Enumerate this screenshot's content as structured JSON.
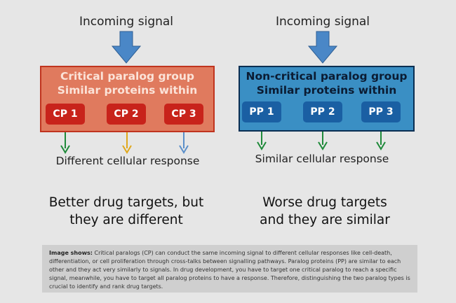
{
  "left": {
    "signal_label": "Incoming signal",
    "group_title_line1": "Critical paralog group",
    "group_title_line2": "Similar proteins within",
    "proteins": [
      "CP 1",
      "CP 2",
      "CP 3"
    ],
    "response_label": "Different cellular response",
    "verdict_line1": "Better drug targets, but",
    "verdict_line2": "they are different",
    "colors": {
      "fill": "#e07a5e",
      "border": "#c0341f",
      "pill": "#c8231b",
      "arrows": [
        "#1f8a3a",
        "#e0a81c",
        "#5b8fc9"
      ]
    }
  },
  "right": {
    "signal_label": "Incoming signal",
    "group_title_line1": "Non-critical paralog group",
    "group_title_line2": "Similar proteins within",
    "proteins": [
      "PP 1",
      "PP 2",
      "PP 3"
    ],
    "response_label": "Similar cellular response",
    "verdict_line1": "Worse drug targets",
    "verdict_line2": "and they are similar",
    "colors": {
      "fill": "#3a8fc4",
      "border": "#0b2f52",
      "pill": "#1a5fa3",
      "arrows": [
        "#1f8a3a",
        "#1f8a3a",
        "#1f8a3a"
      ]
    }
  },
  "caption": {
    "heading": "Image shows:",
    "text": "Critical paralogs (CP) can conduct the same incoming signal to different cellular responses like cell-death, differentiation, or cell proliferation through cross-talks between signalling pathways. Paralog proteins (PP) are similar to each other and they act very similarly to signals. In drug development, you have to target one critical paralog to reach a specific signal, meanwhile, you have to target all paralog proteins to have a response. Therefore, distinguishing the two paralog types is crucial to identify and rank drug targets."
  }
}
